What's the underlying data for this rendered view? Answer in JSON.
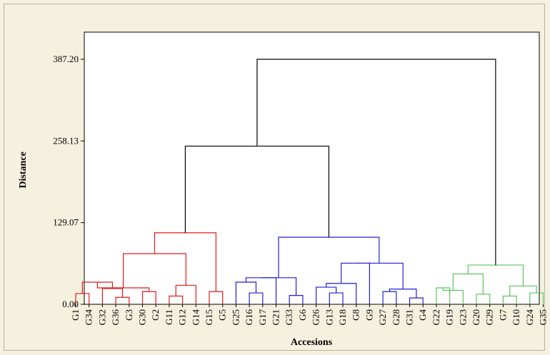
{
  "chart_data": {
    "type": "dendrogram",
    "title": "",
    "xlabel": "Accesions",
    "ylabel": "Distance",
    "ylim": [
      0,
      387.2
    ],
    "y_ticks": [
      "0.00",
      "129.07",
      "258.13",
      "387.20"
    ],
    "leaves": [
      "G1",
      "G34",
      "G32",
      "G36",
      "G3",
      "G30",
      "G2",
      "G11",
      "G12",
      "G14",
      "G15",
      "G5",
      "G25",
      "G16",
      "G17",
      "G21",
      "G33",
      "G6",
      "G26",
      "G13",
      "G18",
      "G8",
      "G9",
      "G27",
      "G28",
      "G31",
      "G4",
      "G22",
      "G19",
      "G23",
      "G20",
      "G29",
      "G7",
      "G10",
      "G24",
      "G35"
    ],
    "colors": {
      "red": "#e31a1c",
      "blue": "#1f1fd6",
      "green": "#5cc35c",
      "black": "#000000",
      "plot_bg": "#ffffff",
      "page_bg": "#f5f1df"
    },
    "merges": [
      {
        "a": "G1",
        "b": "G34",
        "height": 17,
        "color": "red"
      },
      {
        "a": "G36",
        "b": "G3",
        "height": 11,
        "color": "red"
      },
      {
        "a": "G32",
        "b": "m1",
        "height": 25,
        "color": "red"
      },
      {
        "a": "m0",
        "b": "m2",
        "height": 35,
        "color": "red"
      },
      {
        "a": "G30",
        "b": "G2",
        "height": 20,
        "color": "red"
      },
      {
        "a": "m3",
        "b": "m4",
        "height": 26,
        "color": "red"
      },
      {
        "a": "G11",
        "b": "G12",
        "height": 13,
        "color": "red"
      },
      {
        "a": "m6",
        "b": "G14",
        "height": 30,
        "color": "red"
      },
      {
        "a": "m5",
        "b": "m7",
        "height": 80,
        "color": "red"
      },
      {
        "a": "G15",
        "b": "G5",
        "height": 20,
        "color": "red"
      },
      {
        "a": "m8",
        "b": "m9",
        "height": 113,
        "color": "red"
      },
      {
        "a": "G16",
        "b": "G17",
        "height": 18,
        "color": "blue"
      },
      {
        "a": "G25",
        "b": "m11",
        "height": 35,
        "color": "blue"
      },
      {
        "a": "m12",
        "b": "G21",
        "height": 42,
        "color": "blue"
      },
      {
        "a": "G33",
        "b": "G6",
        "height": 14,
        "color": "blue"
      },
      {
        "a": "m13",
        "b": "m14",
        "height": 42,
        "color": "blue"
      },
      {
        "a": "G13",
        "b": "G18",
        "height": 18,
        "color": "blue"
      },
      {
        "a": "G26",
        "b": "m16",
        "height": 27,
        "color": "blue"
      },
      {
        "a": "m17",
        "b": "G8",
        "height": 33,
        "color": "blue"
      },
      {
        "a": "m18",
        "b": "G9",
        "height": 65,
        "color": "blue"
      },
      {
        "a": "G27",
        "b": "G28",
        "height": 20,
        "color": "blue"
      },
      {
        "a": "G31",
        "b": "G4",
        "height": 10,
        "color": "blue"
      },
      {
        "a": "m20",
        "b": "m21",
        "height": 24,
        "color": "blue"
      },
      {
        "a": "m19",
        "b": "m22",
        "height": 65,
        "color": "blue"
      },
      {
        "a": "m15",
        "b": "m23",
        "height": 106,
        "color": "blue"
      },
      {
        "a": "m10",
        "b": "m24",
        "height": 250,
        "color": "black"
      },
      {
        "a": "G22",
        "b": "G19",
        "height": 26,
        "color": "green"
      },
      {
        "a": "m26",
        "b": "G23",
        "height": 22,
        "color": "green"
      },
      {
        "a": "G20",
        "b": "G29",
        "height": 16,
        "color": "green"
      },
      {
        "a": "m27",
        "b": "m28",
        "height": 48,
        "color": "green"
      },
      {
        "a": "G7",
        "b": "G10",
        "height": 13,
        "color": "green"
      },
      {
        "a": "G24",
        "b": "G35",
        "height": 18,
        "color": "green"
      },
      {
        "a": "m30",
        "b": "m31",
        "height": 29,
        "color": "green"
      },
      {
        "a": "m29",
        "b": "m32",
        "height": 62,
        "color": "green"
      },
      {
        "a": "m25",
        "b": "m33",
        "height": 387.2,
        "color": "black"
      }
    ]
  }
}
